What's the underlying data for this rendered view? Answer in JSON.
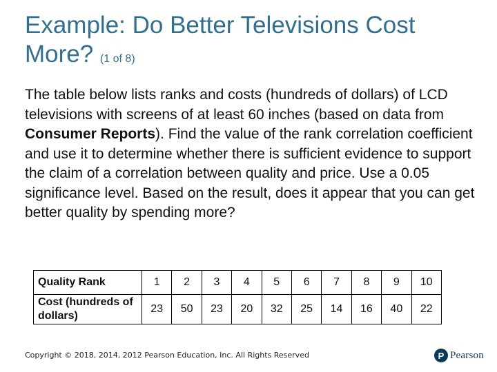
{
  "slide": {
    "title_main": "Example: Do Better Televisions Cost More?",
    "title_sub": "(1 of 8)",
    "paragraph_pre": "The table below lists ranks and costs (hundreds of dollars) of LCD televisions with screens of at least 60 inches (based on data from ",
    "paragraph_bold": "Consumer Reports",
    "paragraph_post": "). Find the value of the rank correlation coefficient and use it to determine whether there is sufficient evidence to support the claim of a correlation between quality and price. Use a 0.05 significance level. Based on the result, does it appear that you can get better quality by spending more?"
  },
  "table": {
    "row1_header": "Quality Rank",
    "row1": [
      "1",
      "2",
      "3",
      "4",
      "5",
      "6",
      "7",
      "8",
      "9",
      "10"
    ],
    "row2_header": "Cost (hundreds of dollars)",
    "row2": [
      "23",
      "50",
      "23",
      "20",
      "32",
      "25",
      "14",
      "16",
      "40",
      "22"
    ]
  },
  "footer": {
    "copyright": "Copyright © 2018, 2014, 2012 Pearson Education, Inc. All Rights Reserved",
    "logo_mark": "P",
    "logo_text": "Pearson"
  }
}
